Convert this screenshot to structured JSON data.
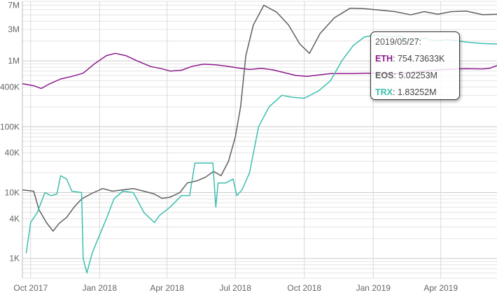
{
  "chart_data": {
    "type": "line",
    "title": "",
    "xlabel": "",
    "ylabel": "",
    "yscale": "log",
    "ylim": [
      500,
      8000000
    ],
    "xlim": [
      "2017-09-20",
      "2019-06-15"
    ],
    "grid": true,
    "legend": "none",
    "x_ticks": [
      {
        "date": "2017-10-01",
        "label": "Oct 2017"
      },
      {
        "date": "2018-01-01",
        "label": "Jan 2018"
      },
      {
        "date": "2018-04-01",
        "label": "Apr 2018"
      },
      {
        "date": "2018-07-01",
        "label": "Jul 2018"
      },
      {
        "date": "2018-10-01",
        "label": "Oct 2018"
      },
      {
        "date": "2019-01-01",
        "label": "Jan 2019"
      },
      {
        "date": "2019-04-01",
        "label": "Apr 2019"
      }
    ],
    "y_ticks": [
      {
        "value": 1000,
        "label": "1K"
      },
      {
        "value": 4000,
        "label": "4K"
      },
      {
        "value": 10000,
        "label": "10K"
      },
      {
        "value": 40000,
        "label": "40K"
      },
      {
        "value": 100000,
        "label": "100K"
      },
      {
        "value": 400000,
        "label": "400K"
      },
      {
        "value": 1000000,
        "label": "1M"
      },
      {
        "value": 3000000,
        "label": "3M"
      },
      {
        "value": 7000000,
        "label": "7M"
      }
    ],
    "series": [
      {
        "name": "ETH",
        "color": "#8b1a8b",
        "points": [
          [
            "2017-09-20",
            450000
          ],
          [
            "2017-10-05",
            420000
          ],
          [
            "2017-10-15",
            380000
          ],
          [
            "2017-10-25",
            440000
          ],
          [
            "2017-11-10",
            530000
          ],
          [
            "2017-11-25",
            580000
          ],
          [
            "2017-12-10",
            650000
          ],
          [
            "2017-12-25",
            900000
          ],
          [
            "2018-01-10",
            1200000
          ],
          [
            "2018-01-22",
            1300000
          ],
          [
            "2018-02-05",
            1200000
          ],
          [
            "2018-02-20",
            1000000
          ],
          [
            "2018-03-10",
            820000
          ],
          [
            "2018-03-25",
            760000
          ],
          [
            "2018-04-05",
            700000
          ],
          [
            "2018-04-20",
            720000
          ],
          [
            "2018-05-05",
            830000
          ],
          [
            "2018-05-20",
            890000
          ],
          [
            "2018-06-05",
            870000
          ],
          [
            "2018-06-20",
            830000
          ],
          [
            "2018-07-05",
            780000
          ],
          [
            "2018-07-20",
            740000
          ],
          [
            "2018-08-05",
            770000
          ],
          [
            "2018-08-20",
            730000
          ],
          [
            "2018-09-05",
            660000
          ],
          [
            "2018-09-20",
            600000
          ],
          [
            "2018-10-05",
            580000
          ],
          [
            "2018-10-20",
            610000
          ],
          [
            "2018-11-05",
            640000
          ],
          [
            "2018-11-20",
            640000
          ],
          [
            "2018-12-05",
            640000
          ],
          [
            "2018-12-20",
            650000
          ],
          [
            "2019-01-05",
            650000
          ],
          [
            "2019-01-20",
            630000
          ],
          [
            "2019-02-05",
            640000
          ],
          [
            "2019-02-20",
            660000
          ],
          [
            "2019-03-05",
            690000
          ],
          [
            "2019-03-20",
            720000
          ],
          [
            "2019-04-05",
            740000
          ],
          [
            "2019-04-20",
            750000
          ],
          [
            "2019-05-05",
            760000
          ],
          [
            "2019-05-27",
            754736
          ],
          [
            "2019-06-05",
            770000
          ],
          [
            "2019-06-15",
            850000
          ]
        ]
      },
      {
        "name": "EOS",
        "color": "#5f5f5f",
        "points": [
          [
            "2017-09-20",
            11000
          ],
          [
            "2017-10-05",
            10500
          ],
          [
            "2017-10-12",
            5500
          ],
          [
            "2017-10-22",
            3500
          ],
          [
            "2017-10-31",
            2600
          ],
          [
            "2017-11-08",
            3400
          ],
          [
            "2017-11-18",
            4200
          ],
          [
            "2017-11-28",
            6000
          ],
          [
            "2017-12-08",
            8000
          ],
          [
            "2017-12-20",
            9500
          ],
          [
            "2018-01-05",
            11500
          ],
          [
            "2018-01-18",
            10500
          ],
          [
            "2018-02-01",
            11000
          ],
          [
            "2018-02-15",
            11500
          ],
          [
            "2018-03-01",
            10500
          ],
          [
            "2018-03-15",
            9500
          ],
          [
            "2018-03-25",
            8200
          ],
          [
            "2018-04-05",
            8500
          ],
          [
            "2018-04-18",
            10000
          ],
          [
            "2018-04-28",
            14000
          ],
          [
            "2018-05-10",
            15000
          ],
          [
            "2018-05-22",
            17000
          ],
          [
            "2018-06-02",
            21000
          ],
          [
            "2018-06-12",
            18000
          ],
          [
            "2018-06-22",
            30000
          ],
          [
            "2018-07-01",
            70000
          ],
          [
            "2018-07-08",
            200000
          ],
          [
            "2018-07-15",
            1200000
          ],
          [
            "2018-07-25",
            3500000
          ],
          [
            "2018-08-08",
            7000000
          ],
          [
            "2018-08-25",
            5500000
          ],
          [
            "2018-09-10",
            3500000
          ],
          [
            "2018-09-25",
            1800000
          ],
          [
            "2018-10-08",
            1300000
          ],
          [
            "2018-10-22",
            2600000
          ],
          [
            "2018-11-10",
            4500000
          ],
          [
            "2018-12-01",
            6300000
          ],
          [
            "2018-12-20",
            6200000
          ],
          [
            "2019-01-10",
            5900000
          ],
          [
            "2019-01-30",
            5600000
          ],
          [
            "2019-02-20",
            5000000
          ],
          [
            "2019-03-10",
            5600000
          ],
          [
            "2019-03-28",
            5100000
          ],
          [
            "2019-04-15",
            5600000
          ],
          [
            "2019-05-05",
            5700000
          ],
          [
            "2019-05-27",
            5022530
          ],
          [
            "2019-06-15",
            5100000
          ]
        ]
      },
      {
        "name": "TRX",
        "color": "#3cbfae",
        "points": [
          [
            "2017-09-25",
            1200
          ],
          [
            "2017-10-01",
            3500
          ],
          [
            "2017-10-10",
            5000
          ],
          [
            "2017-10-20",
            10000
          ],
          [
            "2017-10-28",
            9000
          ],
          [
            "2017-11-05",
            9500
          ],
          [
            "2017-11-10",
            18000
          ],
          [
            "2017-11-18",
            16000
          ],
          [
            "2017-11-25",
            10500
          ],
          [
            "2017-12-08",
            10000
          ],
          [
            "2017-12-10",
            1000
          ],
          [
            "2017-12-15",
            600
          ],
          [
            "2017-12-22",
            1200
          ],
          [
            "2017-12-30",
            2000
          ],
          [
            "2018-01-10",
            4000
          ],
          [
            "2018-01-20",
            8000
          ],
          [
            "2018-02-01",
            10500
          ],
          [
            "2018-02-15",
            10000
          ],
          [
            "2018-03-01",
            5000
          ],
          [
            "2018-03-15",
            3500
          ],
          [
            "2018-03-22",
            4500
          ],
          [
            "2018-04-05",
            6000
          ],
          [
            "2018-04-20",
            9000
          ],
          [
            "2018-05-01",
            9000
          ],
          [
            "2018-05-08",
            28000
          ],
          [
            "2018-05-20",
            28000
          ],
          [
            "2018-06-01",
            28000
          ],
          [
            "2018-06-05",
            6000
          ],
          [
            "2018-06-08",
            14000
          ],
          [
            "2018-06-18",
            14000
          ],
          [
            "2018-06-28",
            16000
          ],
          [
            "2018-07-03",
            9000
          ],
          [
            "2018-07-10",
            11000
          ],
          [
            "2018-07-20",
            20000
          ],
          [
            "2018-08-01",
            100000
          ],
          [
            "2018-08-15",
            200000
          ],
          [
            "2018-09-01",
            300000
          ],
          [
            "2018-09-15",
            280000
          ],
          [
            "2018-10-01",
            270000
          ],
          [
            "2018-10-20",
            350000
          ],
          [
            "2018-11-05",
            500000
          ],
          [
            "2018-11-20",
            1000000
          ],
          [
            "2018-12-05",
            1700000
          ],
          [
            "2018-12-20",
            2300000
          ],
          [
            "2019-01-05",
            2500000
          ],
          [
            "2019-01-20",
            2300000
          ],
          [
            "2019-02-05",
            2400000
          ],
          [
            "2019-02-20",
            2000000
          ],
          [
            "2019-03-10",
            2200000
          ],
          [
            "2019-03-25",
            2000000
          ],
          [
            "2019-04-10",
            2100000
          ],
          [
            "2019-04-25",
            2000000
          ],
          [
            "2019-05-10",
            1900000
          ],
          [
            "2019-05-27",
            1832520
          ],
          [
            "2019-06-15",
            1800000
          ]
        ]
      }
    ],
    "tooltip": {
      "date": "2019/05/27:",
      "rows": [
        {
          "name": "ETH",
          "value": "754.73633K",
          "color": "#8b1a8b"
        },
        {
          "name": "EOS",
          "value": "5.02253M",
          "color": "#5f5f5f"
        },
        {
          "name": "TRX",
          "value": "1.83252M",
          "color": "#3cbfae"
        }
      ]
    }
  }
}
